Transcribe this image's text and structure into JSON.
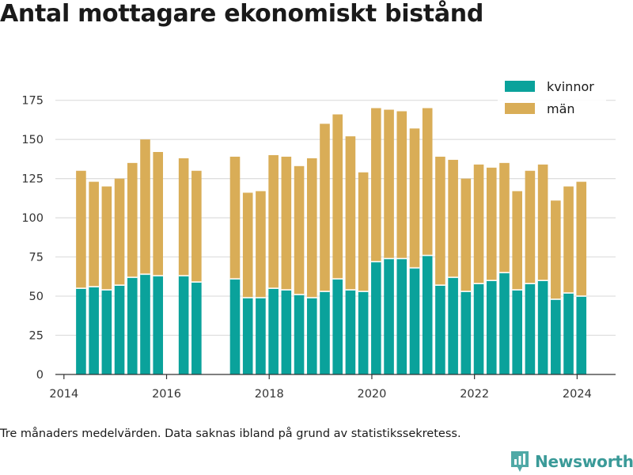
{
  "title": "Antal mottagare ekonomiskt bistånd",
  "footnote": "Tre månaders medelvärden. Data saknas ibland på grund av statistikssekretess.",
  "brand": {
    "name": "Newsworthy"
  },
  "colors": {
    "kvinnor": "#0aa29b",
    "man": "#d9ad57",
    "grid": "#dddddd",
    "axis": "#333333"
  },
  "chart_data": {
    "type": "bar",
    "stacked": true,
    "x_is_date": true,
    "x": [
      "2014-05",
      "2014-08",
      "2014-11",
      "2015-02",
      "2015-05",
      "2015-08",
      "2015-11",
      "2016-05",
      "2016-08",
      "2017-05",
      "2017-08",
      "2017-11",
      "2018-02",
      "2018-05",
      "2018-08",
      "2018-11",
      "2019-02",
      "2019-05",
      "2019-08",
      "2019-11",
      "2020-02",
      "2020-05",
      "2020-08",
      "2020-11",
      "2021-02",
      "2021-05",
      "2021-08",
      "2021-11",
      "2022-02",
      "2022-05",
      "2022-08",
      "2022-11",
      "2023-02",
      "2023-05",
      "2023-08",
      "2023-11",
      "2024-02"
    ],
    "series": [
      {
        "name": "kvinnor",
        "values": [
          55,
          56,
          54,
          57,
          62,
          64,
          63,
          63,
          59,
          61,
          49,
          49,
          55,
          54,
          51,
          49,
          53,
          61,
          54,
          53,
          72,
          74,
          74,
          68,
          76,
          57,
          62,
          53,
          58,
          60,
          65,
          54,
          58,
          60,
          48,
          52,
          50
        ]
      },
      {
        "name": "män",
        "values": [
          75,
          67,
          66,
          68,
          73,
          86,
          79,
          75,
          71,
          78,
          67,
          68,
          85,
          85,
          82,
          89,
          107,
          105,
          98,
          76,
          98,
          95,
          94,
          89,
          94,
          82,
          75,
          72,
          76,
          72,
          70,
          63,
          72,
          74,
          63,
          68,
          73
        ]
      }
    ],
    "yticks": [
      0,
      25,
      50,
      75,
      100,
      125,
      150,
      175
    ],
    "xticks": [
      "2014",
      "2016",
      "2018",
      "2020",
      "2022",
      "2024"
    ],
    "ylim": [
      0,
      190
    ],
    "xlim": [
      "2013-11",
      "2024-10"
    ],
    "grid": true,
    "legend": "top-right"
  }
}
